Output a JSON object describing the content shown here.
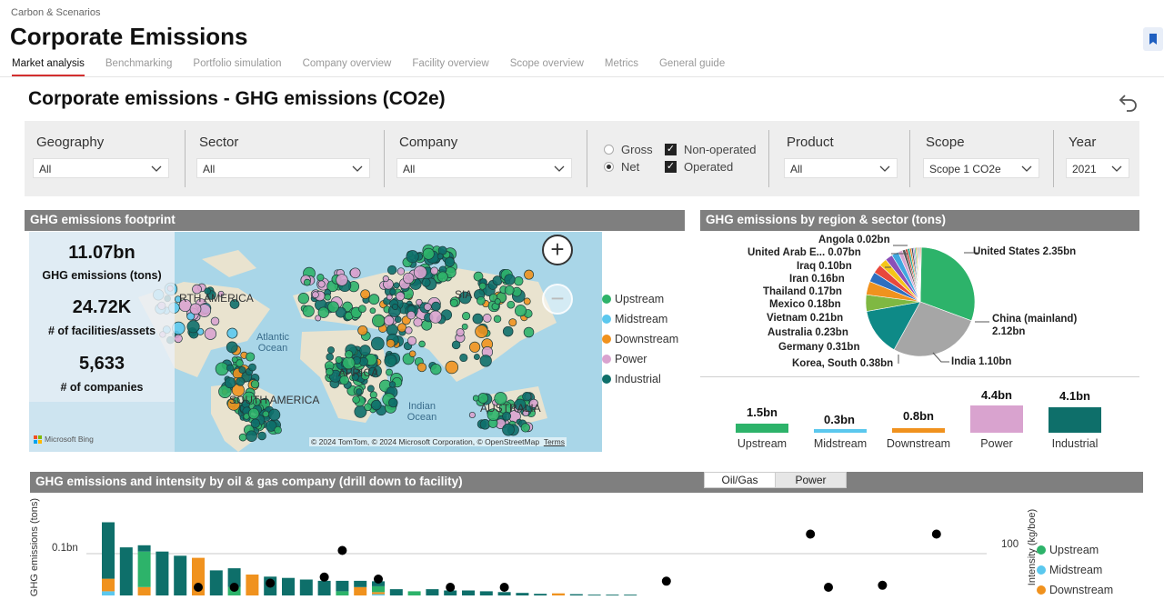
{
  "header": {
    "breadcrumb": "Carbon & Scenarios",
    "title": "Corporate Emissions",
    "tabs": [
      {
        "label": "Market analysis",
        "active": true
      },
      {
        "label": "Benchmarking",
        "active": false
      },
      {
        "label": "Portfolio simulation",
        "active": false
      },
      {
        "label": "Company overview",
        "active": false
      },
      {
        "label": "Facility overview",
        "active": false
      },
      {
        "label": "Scope overview",
        "active": false
      },
      {
        "label": "Metrics",
        "active": false
      },
      {
        "label": "General guide",
        "active": false
      }
    ]
  },
  "report": {
    "title": "Corporate emissions - GHG emissions (CO2e)"
  },
  "filters": {
    "geography": {
      "label": "Geography",
      "value": "All"
    },
    "sector": {
      "label": "Sector",
      "value": "All"
    },
    "company": {
      "label": "Company",
      "value": "All"
    },
    "basis": {
      "gross": "Gross",
      "net": "Net",
      "selected": "Net"
    },
    "operation": {
      "non_operated": "Non-operated",
      "operated": "Operated",
      "non_operated_checked": true,
      "operated_checked": true
    },
    "product": {
      "label": "Product",
      "value": "All"
    },
    "scope": {
      "label": "Scope",
      "value": "Scope 1 CO2e"
    },
    "year": {
      "label": "Year",
      "value": "2021"
    }
  },
  "footprint": {
    "title": "GHG emissions footprint",
    "kpis": [
      {
        "value": "11.07bn",
        "label": "GHG emissions (tons)"
      },
      {
        "value": "24.72K",
        "label": "# of facilities/assets"
      },
      {
        "value": "5,633",
        "label": "# of companies"
      }
    ],
    "map_labels": {
      "north_america": "RTH AMERICA",
      "south_america": "SOUTH AMERICA",
      "africa": "AFRICA",
      "asia": "SIA",
      "australia": "AUSTRALIA",
      "atlantic": "Atlantic Ocean",
      "indian": "Indian Ocean"
    },
    "attribution": "© 2024 TomTom, © 2024 Microsoft Corporation, © OpenStreetMap",
    "terms": "Terms",
    "bing": "Microsoft Bing",
    "zoom_in": "+",
    "zoom_out": "−",
    "legend": [
      {
        "name": "Upstream",
        "color": "#2db36a"
      },
      {
        "name": "Midstream",
        "color": "#5bc8ee"
      },
      {
        "name": "Downstream",
        "color": "#f0921e"
      },
      {
        "name": "Power",
        "color": "#d9a3cf"
      },
      {
        "name": "Industrial",
        "color": "#0e6f6a"
      }
    ]
  },
  "region": {
    "title": "GHG emissions by region & sector (tons)",
    "pie_labels": {
      "angola": "Angola 0.02bn",
      "uae": "United Arab E... 0.07bn",
      "iraq": "Iraq 0.10bn",
      "iran": "Iran 0.16bn",
      "thailand": "Thailand 0.17bn",
      "mexico": "Mexico 0.18bn",
      "vietnam": "Vietnam 0.21bn",
      "australia": "Australia 0.23bn",
      "germany": "Germany 0.31bn",
      "korea": "Korea, South 0.38bn",
      "india": "India 1.10bn",
      "us": "United States 2.35bn",
      "china_name": "China (mainland)",
      "china_value": "2.12bn"
    },
    "sector_bars": [
      {
        "label": "Upstream",
        "value": "1.5bn",
        "amount": 1.5,
        "color": "#2db36a"
      },
      {
        "label": "Midstream",
        "value": "0.3bn",
        "amount": 0.3,
        "color": "#5bc8ee"
      },
      {
        "label": "Downstream",
        "value": "0.8bn",
        "amount": 0.8,
        "color": "#f0921e"
      },
      {
        "label": "Power",
        "value": "4.4bn",
        "amount": 4.4,
        "color": "#d9a3cf"
      },
      {
        "label": "Industrial",
        "value": "4.1bn",
        "amount": 4.1,
        "color": "#0e6f6a"
      }
    ]
  },
  "intensity": {
    "title": "GHG emissions and intensity by oil & gas company (drill down to facility)",
    "toggle": {
      "oil_gas": "Oil/Gas",
      "power": "Power",
      "selected": "Power"
    },
    "y_left_label": "GHG emissions (tons)",
    "y_right_label": "Intensity (kg/boe)",
    "y_left_tick": "0.1bn",
    "y_right_tick": "100",
    "legend": [
      {
        "name": "Upstream",
        "color": "#2db36a"
      },
      {
        "name": "Midstream",
        "color": "#5bc8ee"
      },
      {
        "name": "Downstream",
        "color": "#f0921e"
      }
    ]
  },
  "chart_data": {
    "type": "bar",
    "title": "GHG emissions and intensity by oil & gas company (drill down to facility)",
    "ylabel": "GHG emissions (tons)",
    "y2label": "Intensity (kg/boe)",
    "series": [
      {
        "name": "Industrial",
        "values": [
          0.135,
          0.115,
          0.015,
          0.105,
          0.095,
          0,
          0.06,
          0.045,
          0,
          0.045,
          0.042,
          0.038,
          0.035,
          0.025,
          0.015,
          0.012,
          0.015,
          0,
          0.015,
          0.012,
          0.012,
          0.01,
          0.008,
          0.006,
          0.004,
          0,
          0.003,
          0.002,
          0.002,
          0.002
        ]
      },
      {
        "name": "Upstream",
        "values": [
          0,
          0,
          0.085,
          0,
          0,
          0,
          0,
          0.02,
          0,
          0,
          0,
          0,
          0,
          0.01,
          0,
          0.014,
          0,
          0.01,
          0,
          0,
          0,
          0,
          0,
          0,
          0,
          0,
          0,
          0,
          0,
          0
        ]
      },
      {
        "name": "Downstream",
        "values": [
          0.03,
          0,
          0.02,
          0,
          0,
          0.09,
          0,
          0,
          0.05,
          0,
          0,
          0,
          0,
          0,
          0.02,
          0.005,
          0,
          0,
          0,
          0,
          0,
          0,
          0,
          0,
          0,
          0.005,
          0,
          0,
          0,
          0
        ]
      },
      {
        "name": "Midstream",
        "values": [
          0.01,
          0,
          0,
          0,
          0,
          0,
          0,
          0,
          0,
          0,
          0,
          0,
          0,
          0,
          0,
          0.003,
          0,
          0,
          0,
          0,
          0,
          0,
          0,
          0,
          0,
          0,
          0,
          0,
          0,
          0
        ]
      }
    ],
    "intensity_points": [
      {
        "x": 5,
        "y": 20
      },
      {
        "x": 7,
        "y": 20
      },
      {
        "x": 9,
        "y": 30
      },
      {
        "x": 12,
        "y": 45
      },
      {
        "x": 13,
        "y": 110
      },
      {
        "x": 15,
        "y": 40
      },
      {
        "x": 19,
        "y": 20
      },
      {
        "x": 22,
        "y": 20
      },
      {
        "x": 31,
        "y": 35
      },
      {
        "x": 39,
        "y": 150
      },
      {
        "x": 40,
        "y": 20
      },
      {
        "x": 43,
        "y": 25
      },
      {
        "x": 46,
        "y": 150
      }
    ],
    "y_tick": "0.1bn",
    "y2_tick": "100"
  }
}
